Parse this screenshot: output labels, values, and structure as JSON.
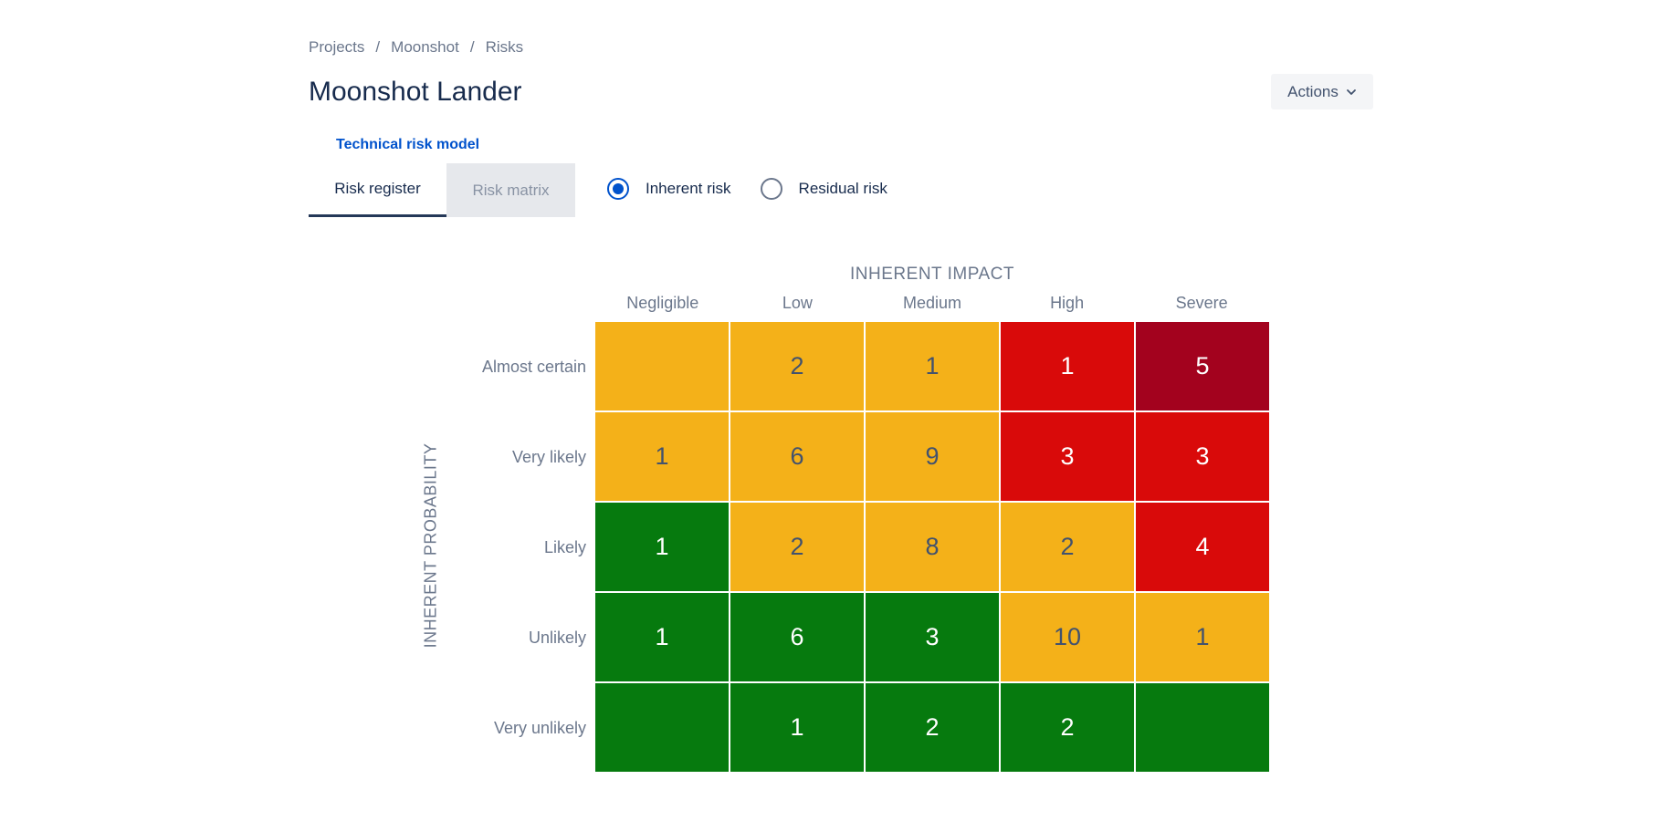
{
  "breadcrumb": {
    "items": [
      "Projects",
      "Moonshot",
      "Risks"
    ],
    "separator": "/"
  },
  "page": {
    "title": "Moonshot Lander",
    "actions_label": "Actions",
    "model_link": "Technical risk model"
  },
  "tabs": [
    {
      "label": "Risk register",
      "selected": true
    },
    {
      "label": "Risk matrix",
      "selected": false
    }
  ],
  "risk_type": {
    "options": [
      {
        "label": "Inherent risk",
        "checked": true
      },
      {
        "label": "Residual risk",
        "checked": false
      }
    ]
  },
  "matrix": {
    "impact_title": "INHERENT IMPACT",
    "probability_title": "INHERENT PROBABILITY",
    "impact_levels": [
      "Negligible",
      "Low",
      "Medium",
      "High",
      "Severe"
    ],
    "probability_levels": [
      "Almost certain",
      "Very likely",
      "Likely",
      "Unlikely",
      "Very unlikely"
    ],
    "colors": {
      "green": "#067a0e",
      "amber": "#f4b119",
      "red": "#d90a0a",
      "darkred": "#a3021e"
    },
    "rows": [
      [
        {
          "count": "",
          "level": "amber"
        },
        {
          "count": "2",
          "level": "amber"
        },
        {
          "count": "1",
          "level": "amber"
        },
        {
          "count": "1",
          "level": "red"
        },
        {
          "count": "5",
          "level": "darkred"
        }
      ],
      [
        {
          "count": "1",
          "level": "amber"
        },
        {
          "count": "6",
          "level": "amber"
        },
        {
          "count": "9",
          "level": "amber"
        },
        {
          "count": "3",
          "level": "red"
        },
        {
          "count": "3",
          "level": "red"
        }
      ],
      [
        {
          "count": "1",
          "level": "green"
        },
        {
          "count": "2",
          "level": "amber"
        },
        {
          "count": "8",
          "level": "amber"
        },
        {
          "count": "2",
          "level": "amber"
        },
        {
          "count": "4",
          "level": "red"
        }
      ],
      [
        {
          "count": "1",
          "level": "green"
        },
        {
          "count": "6",
          "level": "green"
        },
        {
          "count": "3",
          "level": "green"
        },
        {
          "count": "10",
          "level": "amber"
        },
        {
          "count": "1",
          "level": "amber"
        }
      ],
      [
        {
          "count": "",
          "level": "green"
        },
        {
          "count": "1",
          "level": "green"
        },
        {
          "count": "2",
          "level": "green"
        },
        {
          "count": "2",
          "level": "green"
        },
        {
          "count": "",
          "level": "green"
        }
      ]
    ]
  }
}
